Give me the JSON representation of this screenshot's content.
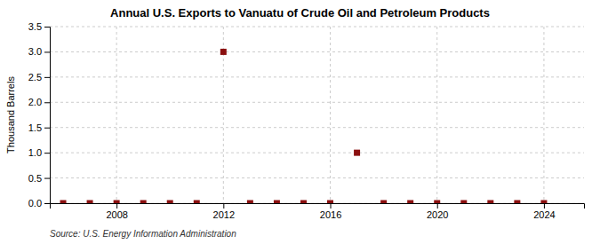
{
  "chart_data": {
    "type": "scatter",
    "title": "Annual U.S. Exports to Vanuatu of Crude Oil and Petroleum Products",
    "ylabel": "Thousand Barrels",
    "source": "Source: U.S. Energy Information Administration",
    "x": [
      2006,
      2007,
      2008,
      2009,
      2010,
      2011,
      2012,
      2013,
      2014,
      2015,
      2016,
      2017,
      2018,
      2019,
      2020,
      2021,
      2022,
      2023,
      2024
    ],
    "values": [
      0,
      0,
      0,
      0,
      0,
      0,
      3.0,
      0,
      0,
      0,
      0,
      1.0,
      0,
      0,
      0,
      0,
      0,
      0,
      0
    ],
    "color": "#8b1010",
    "marker": "square",
    "xlim": [
      2005.5,
      2025.5
    ],
    "xticks": [
      2008,
      2012,
      2016,
      2020,
      2024
    ],
    "ylim": [
      0,
      3.5
    ],
    "yticks": [
      {
        "value": 0,
        "label": "0.0"
      },
      0.5,
      {
        "value": 1,
        "label": "1.0"
      },
      1.5,
      {
        "value": 2,
        "label": "2.0"
      },
      2.5,
      {
        "value": 3,
        "label": "3.0"
      },
      3.5
    ],
    "grid": true
  }
}
